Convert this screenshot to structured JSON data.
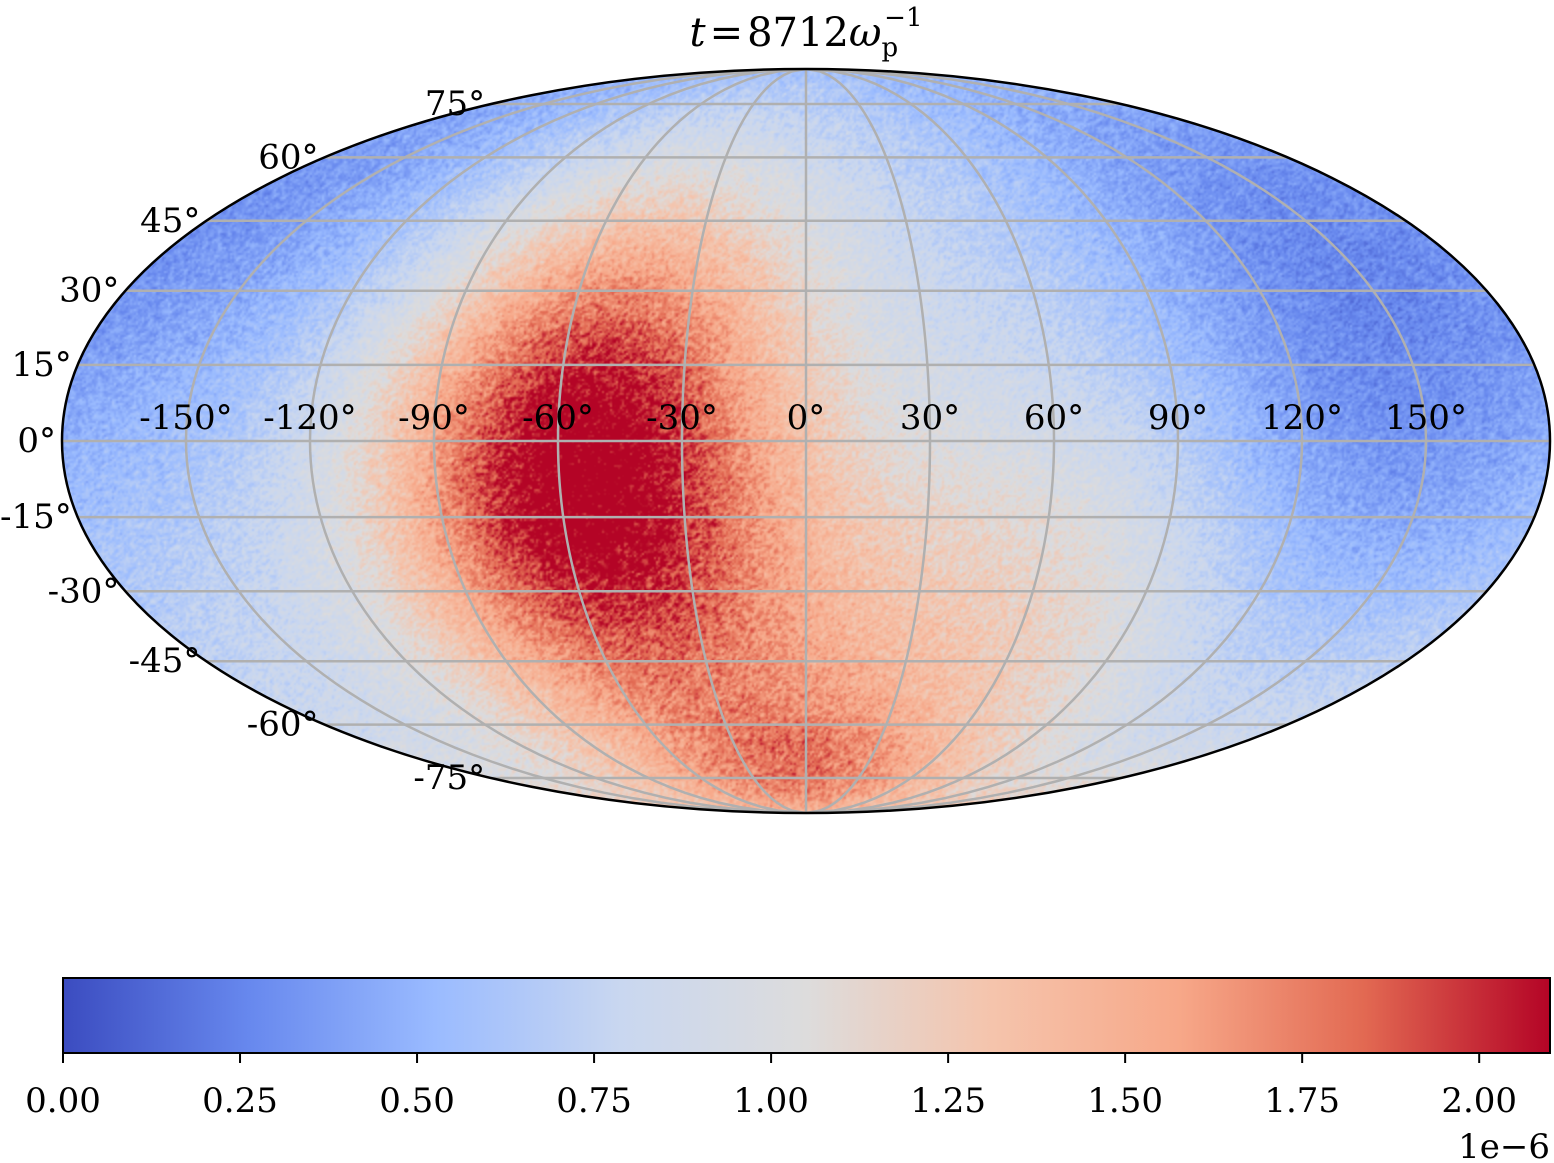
{
  "chart_data": {
    "type": "heatmap",
    "projection": "mollweide",
    "title": {
      "var": "t",
      "eq": "=",
      "value": "8712",
      "symbol": "ω",
      "subscript": "p",
      "superscript": "−1"
    },
    "colormap": "coolwarm",
    "colormap_stops": [
      "#3b4cc0",
      "#6788ee",
      "#9abbff",
      "#c9d7f0",
      "#dddcdc",
      "#f5c4ac",
      "#f7a889",
      "#e26952",
      "#b40426"
    ],
    "grid_color": "#b0b0b0",
    "lon_ticks": [
      -150,
      -120,
      -90,
      -60,
      -30,
      0,
      30,
      60,
      90,
      120,
      150
    ],
    "lon_tick_labels": [
      "-150°",
      "-120°",
      "-90°",
      "-60°",
      "-30°",
      "0°",
      "30°",
      "60°",
      "90°",
      "120°",
      "150°"
    ],
    "lat_ticks": [
      75,
      60,
      45,
      30,
      15,
      0,
      -15,
      -30,
      -45,
      -60,
      -75
    ],
    "lat_tick_labels": [
      "75°",
      "60°",
      "45°",
      "30°",
      "15°",
      "0°",
      "-15°",
      "-30°",
      "-45°",
      "-60°",
      "-75°"
    ],
    "field": {
      "description_units": "value x 1e-6",
      "background": 0.8,
      "hotspots": [
        {
          "lon": -62,
          "lat": -8,
          "amplitude": 1.05,
          "width_deg": 32
        },
        {
          "lon": -40,
          "lat": 20,
          "amplitude": 0.45,
          "width_deg": 30
        },
        {
          "lon": -20,
          "lat": -45,
          "amplitude": 0.5,
          "width_deg": 35
        },
        {
          "lon": 60,
          "lat": -35,
          "amplitude": 0.3,
          "width_deg": 30
        },
        {
          "lon": 0,
          "lat": -75,
          "amplitude": 0.5,
          "width_deg": 15
        }
      ],
      "coldspots": [
        {
          "lon": 130,
          "lat": 35,
          "amplitude": 0.35,
          "width_deg": 40
        },
        {
          "lon": -150,
          "lat": 40,
          "amplitude": 0.3,
          "width_deg": 40
        },
        {
          "lon": 140,
          "lat": -10,
          "amplitude": 0.2,
          "width_deg": 30
        }
      ],
      "noise_amplitude": 0.18
    },
    "colorbar": {
      "vmin": 0.0,
      "vmax": 2.1,
      "ticks": [
        0.0,
        0.25,
        0.5,
        0.75,
        1.0,
        1.25,
        1.5,
        1.75,
        2.0
      ],
      "tick_labels": [
        "0.00",
        "0.25",
        "0.50",
        "0.75",
        "1.00",
        "1.25",
        "1.50",
        "1.75",
        "2.00"
      ],
      "offset_label": "1e−6",
      "orientation": "horizontal"
    }
  }
}
